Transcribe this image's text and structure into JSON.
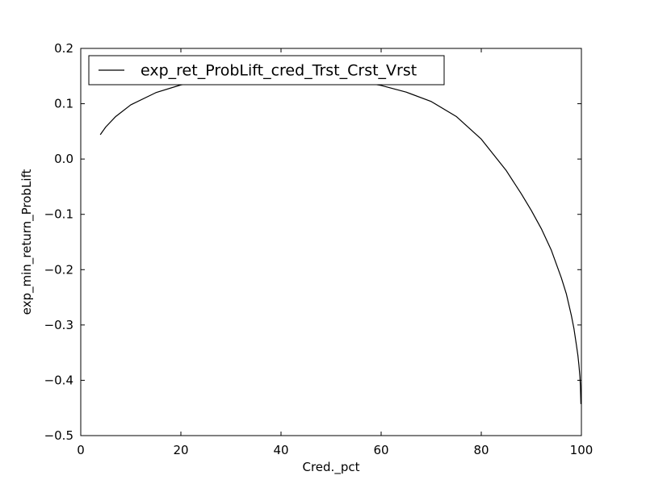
{
  "chart_data": {
    "type": "line",
    "title": "",
    "xlabel": "Cred._pct",
    "ylabel": "exp_min_return_ProbLift",
    "xlim": [
      0,
      100
    ],
    "ylim": [
      -0.5,
      0.2
    ],
    "xticks": [
      0,
      20,
      40,
      60,
      80,
      100
    ],
    "xtick_labels": [
      "0",
      "20",
      "40",
      "60",
      "80",
      "100"
    ],
    "yticks": [
      -0.5,
      -0.4,
      -0.3,
      -0.2,
      -0.1,
      0.0,
      0.1,
      0.2
    ],
    "ytick_labels": [
      "−0.5",
      "−0.4",
      "−0.3",
      "−0.2",
      "−0.1",
      "0.0",
      "0.1",
      "0.2"
    ],
    "grid": false,
    "legend_position": "upper-left",
    "series": [
      {
        "name": "exp_ret_ProbLift_cred_Trst_Crst_Vrst",
        "color": "#000000",
        "x": [
          3.9,
          5,
          7,
          10,
          15,
          20,
          25,
          30,
          35,
          40,
          45,
          50,
          55,
          60,
          65,
          70,
          75,
          80,
          85,
          88,
          90,
          92,
          94,
          95,
          96,
          97,
          98,
          98.5,
          99,
          99.3,
          99.5,
          99.7,
          99.8,
          99.9
        ],
        "y": [
          0.044,
          0.058,
          0.077,
          0.098,
          0.12,
          0.134,
          0.142,
          0.147,
          0.15,
          0.151,
          0.149,
          0.146,
          0.141,
          0.133,
          0.121,
          0.104,
          0.077,
          0.036,
          -0.021,
          -0.063,
          -0.093,
          -0.126,
          -0.165,
          -0.19,
          -0.215,
          -0.244,
          -0.283,
          -0.306,
          -0.336,
          -0.355,
          -0.372,
          -0.393,
          -0.41,
          -0.443
        ]
      }
    ]
  }
}
